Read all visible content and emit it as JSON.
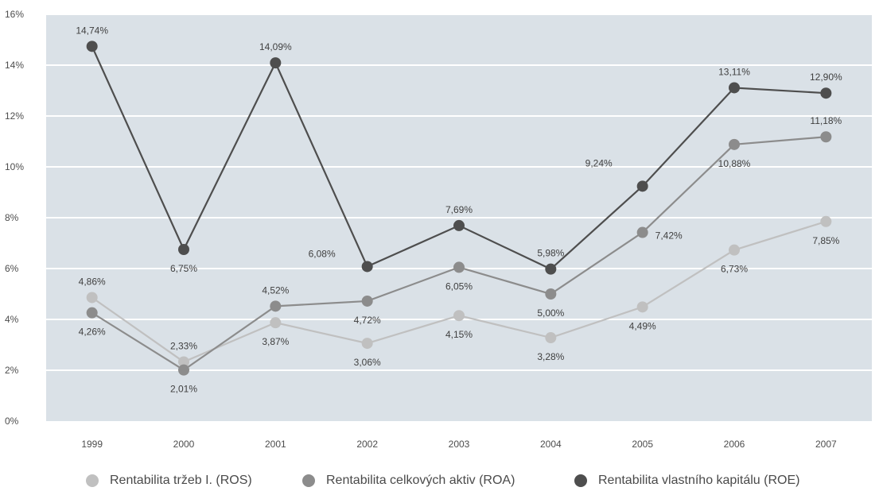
{
  "chart_data": {
    "type": "line",
    "x": [
      "1999",
      "2000",
      "2001",
      "2002",
      "2003",
      "2004",
      "2005",
      "2006",
      "2007"
    ],
    "ylim": [
      0,
      16
    ],
    "yticks": [
      "0%",
      "2%",
      "4%",
      "6%",
      "8%",
      "10%",
      "12%",
      "14%",
      "16%"
    ],
    "grid": true,
    "legend_position": "bottom",
    "background_color": "#dae1e7",
    "series": [
      {
        "name": "Rentabilita tržeb I. (ROS)",
        "color": "#c0c0c0",
        "values": [
          4.86,
          2.33,
          3.87,
          3.06,
          4.15,
          3.28,
          4.49,
          6.73,
          7.85
        ],
        "labels": [
          "4,86%",
          "2,33%",
          "3,87%",
          "3,06%",
          "4,15%",
          "3,28%",
          "4,49%",
          "6,73%",
          "7,85%"
        ],
        "label_pos": [
          "above",
          "above",
          "below",
          "below",
          "below",
          "below",
          "below",
          "below",
          "below"
        ]
      },
      {
        "name": "Rentabilita celkových aktiv (ROA)",
        "color": "#8c8c8c",
        "values": [
          4.26,
          2.01,
          4.52,
          4.72,
          6.05,
          5.0,
          7.42,
          10.88,
          11.18
        ],
        "labels": [
          "4,26%",
          "2,01%",
          "4,52%",
          "4,72%",
          "6,05%",
          "5,00%",
          "7,42%",
          "10,88%",
          "11,18%"
        ],
        "label_pos": [
          "below",
          "below",
          "above",
          "below",
          "below",
          "below",
          "right",
          "below",
          "above"
        ]
      },
      {
        "name": "Rentabilita vlastního kapitálu (ROE)",
        "color": "#4e4e4e",
        "values": [
          14.74,
          6.75,
          14.09,
          6.08,
          7.69,
          5.98,
          9.24,
          13.11,
          12.9
        ],
        "labels": [
          "14,74%",
          "6,75%",
          "14,09%",
          "6,08%",
          "7,69%",
          "5,98%",
          "9,24%",
          "13,11%",
          "12,90%"
        ],
        "label_pos": [
          "above",
          "below",
          "above",
          "left",
          "above",
          "above",
          "aboveleft",
          "above",
          "above"
        ]
      }
    ]
  }
}
